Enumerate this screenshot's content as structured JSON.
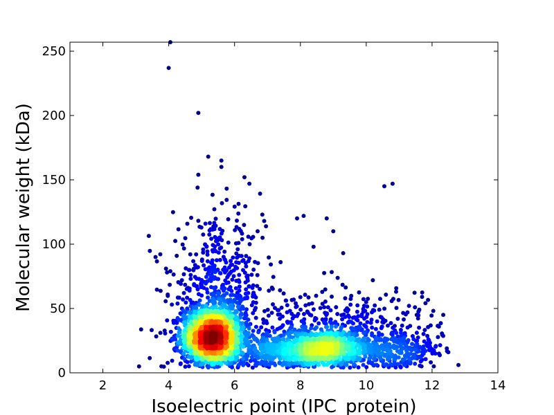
{
  "chart_data": {
    "type": "scatter",
    "title": "",
    "xlabel": "Isoelectric point (IPC_protein)",
    "ylabel": "Molecular weight (kDa)",
    "xlim": [
      1,
      14
    ],
    "ylim": [
      0,
      257
    ],
    "xticks": [
      2,
      4,
      6,
      8,
      10,
      12,
      14
    ],
    "yticks": [
      0,
      50,
      100,
      150,
      200,
      250
    ],
    "grid": false,
    "legend": "none",
    "color_by": "point density (jet colormap)",
    "colormap": [
      "#00007f",
      "#0000ff",
      "#007fff",
      "#00ffff",
      "#7fff7f",
      "#ffff00",
      "#ff7f00",
      "#ff0000",
      "#7f0000"
    ],
    "clusters": [
      {
        "center": [
          5.3,
          28
        ],
        "spread": [
          0.45,
          11
        ],
        "count": 1700
      },
      {
        "center": [
          8.7,
          18
        ],
        "spread": [
          0.85,
          7
        ],
        "count": 1000
      },
      {
        "center": [
          5.5,
          60
        ],
        "spread": [
          0.7,
          28
        ],
        "count": 550
      },
      {
        "center": [
          9.2,
          35
        ],
        "spread": [
          1.6,
          16
        ],
        "count": 450
      },
      {
        "center": [
          7.0,
          15
        ],
        "spread": [
          0.9,
          8
        ],
        "count": 300
      },
      {
        "center": [
          11.0,
          15
        ],
        "spread": [
          0.6,
          8
        ],
        "count": 220
      }
    ],
    "outliers": [
      [
        4.05,
        257
      ],
      [
        4.0,
        237
      ],
      [
        4.9,
        202
      ],
      [
        5.2,
        168
      ],
      [
        5.6,
        165
      ],
      [
        5.6,
        160
      ],
      [
        4.9,
        154
      ],
      [
        6.3,
        152
      ],
      [
        6.45,
        147
      ],
      [
        10.55,
        145
      ],
      [
        10.8,
        147
      ],
      [
        3.6,
        90
      ],
      [
        3.95,
        78
      ],
      [
        4.05,
        79
      ],
      [
        12.8,
        6
      ],
      [
        3.1,
        5
      ],
      [
        12.1,
        15
      ],
      [
        9.0,
        110
      ],
      [
        8.1,
        122
      ],
      [
        8.8,
        120
      ],
      [
        6.9,
        118
      ],
      [
        7.4,
        86
      ],
      [
        8.4,
        98
      ],
      [
        7.9,
        120
      ],
      [
        6.7,
        110
      ],
      [
        6.85,
        105
      ],
      [
        9.3,
        93
      ],
      [
        10.2,
        72
      ],
      [
        10.0,
        55
      ],
      [
        11.3,
        52
      ]
    ]
  }
}
